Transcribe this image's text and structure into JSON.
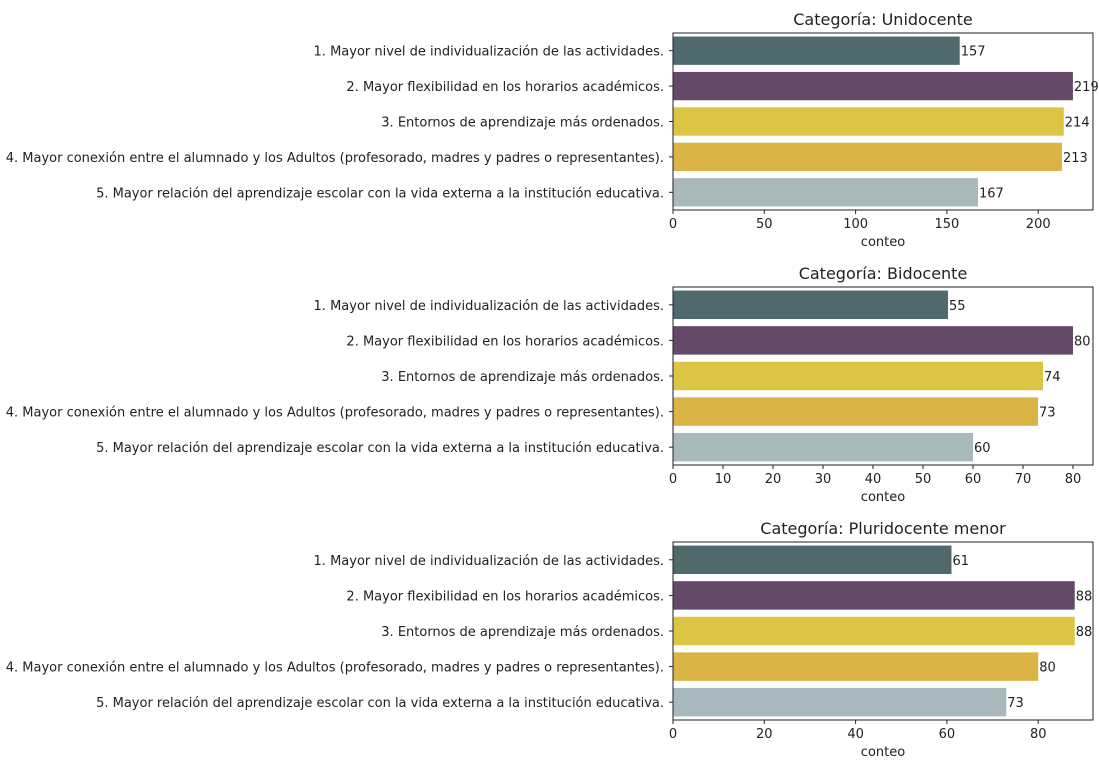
{
  "chart_data": [
    {
      "type": "bar",
      "orientation": "horizontal",
      "title": "Categoría: Unidocente",
      "xlabel": "conteo",
      "ylabel": "",
      "xlim": [
        0,
        230
      ],
      "xticks": [
        0,
        50,
        100,
        150,
        200
      ],
      "grid": false,
      "categories": [
        "1. Mayor nivel de individualización de las actividades.",
        "2. Mayor flexibilidad en los horarios académicos.",
        "3. Entornos de aprendizaje más ordenados.",
        "4. Mayor conexión entre el alumnado y los Adultos (profesorado, madres y padres o representantes).",
        "5. Mayor relación del aprendizaje escolar con la vida externa a la institución educativa."
      ],
      "values": [
        157,
        219,
        214,
        213,
        167
      ],
      "bar_colors": [
        "#50696d",
        "#644a68",
        "#dcc444",
        "#dab444",
        "#a9b8bd"
      ]
    },
    {
      "type": "bar",
      "orientation": "horizontal",
      "title": "Categoría: Bidocente",
      "xlabel": "conteo",
      "ylabel": "",
      "xlim": [
        0,
        84
      ],
      "xticks": [
        0,
        10,
        20,
        30,
        40,
        50,
        60,
        70,
        80
      ],
      "grid": false,
      "categories": [
        "1. Mayor nivel de individualización de las actividades.",
        "2. Mayor flexibilidad en los horarios académicos.",
        "3. Entornos de aprendizaje más ordenados.",
        "4. Mayor conexión entre el alumnado y los Adultos (profesorado, madres y padres o representantes).",
        "5. Mayor relación del aprendizaje escolar con la vida externa a la institución educativa."
      ],
      "values": [
        55,
        80,
        74,
        73,
        60
      ],
      "bar_colors": [
        "#50696d",
        "#644a68",
        "#dcc444",
        "#dab444",
        "#a9b8bd"
      ]
    },
    {
      "type": "bar",
      "orientation": "horizontal",
      "title": "Categoría: Pluridocente menor",
      "xlabel": "conteo",
      "ylabel": "",
      "xlim": [
        0,
        92
      ],
      "xticks": [
        0,
        20,
        40,
        60,
        80
      ],
      "grid": false,
      "categories": [
        "1. Mayor nivel de individualización de las actividades.",
        "2. Mayor flexibilidad en los horarios académicos.",
        "3. Entornos de aprendizaje más ordenados.",
        "4. Mayor conexión entre el alumnado y los Adultos (profesorado, madres y padres o representantes).",
        "5. Mayor relación del aprendizaje escolar con la vida externa a la institución educativa."
      ],
      "values": [
        61,
        88,
        88,
        80,
        73
      ],
      "bar_colors": [
        "#50696d",
        "#644a68",
        "#dcc444",
        "#dab444",
        "#a9b8bd"
      ]
    }
  ]
}
